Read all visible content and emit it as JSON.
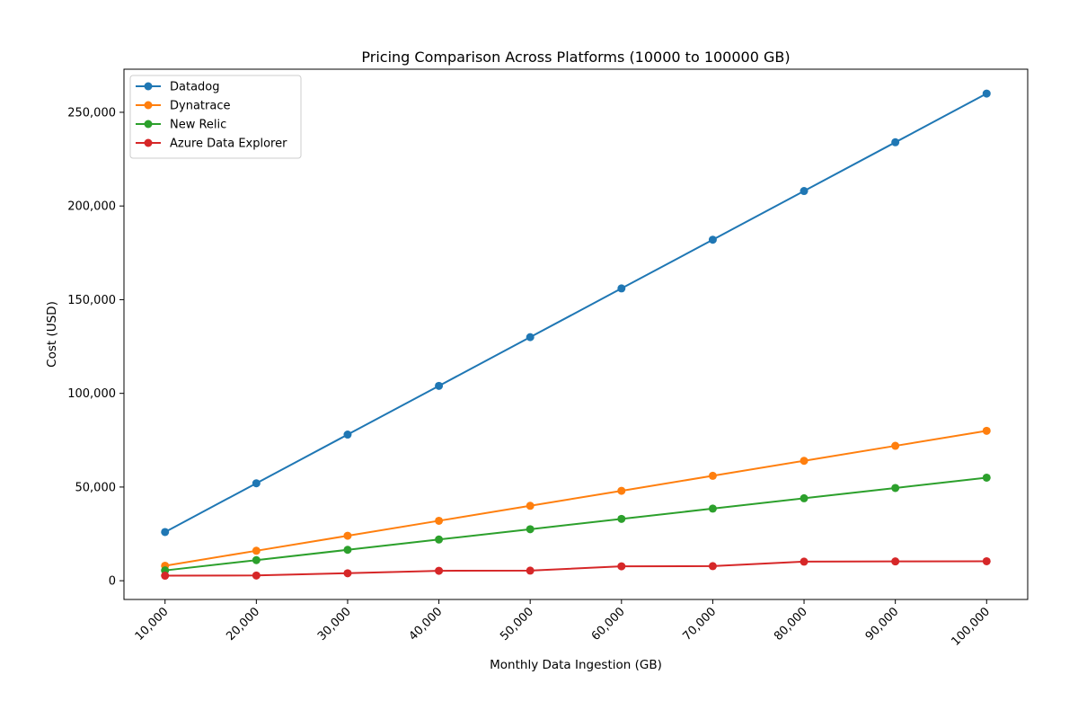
{
  "chart_data": {
    "type": "line",
    "title": "Pricing Comparison Across Platforms (10000 to 100000 GB)",
    "xlabel": "Monthly Data Ingestion (GB)",
    "ylabel": "Cost (USD)",
    "x": [
      10000,
      20000,
      30000,
      40000,
      50000,
      60000,
      70000,
      80000,
      90000,
      100000
    ],
    "x_tick_labels": [
      "10,000",
      "20,000",
      "30,000",
      "40,000",
      "50,000",
      "60,000",
      "70,000",
      "80,000",
      "90,000",
      "100,000"
    ],
    "y_ticks": [
      0,
      50000,
      100000,
      150000,
      200000,
      250000
    ],
    "y_tick_labels": [
      "0",
      "50,000",
      "100,000",
      "150,000",
      "200,000",
      "250,000"
    ],
    "xlim": [
      5500,
      104500
    ],
    "ylim": [
      -10000,
      273000
    ],
    "grid": false,
    "legend_position": "upper-left",
    "series": [
      {
        "name": "Datadog",
        "color": "#1f77b4",
        "values": [
          26000,
          52000,
          78000,
          104000,
          130000,
          156000,
          182000,
          208000,
          234000,
          260000
        ]
      },
      {
        "name": "Dynatrace",
        "color": "#ff7f0e",
        "values": [
          8000,
          16000,
          24000,
          32000,
          40000,
          48000,
          56000,
          64000,
          72000,
          80000
        ]
      },
      {
        "name": "New Relic",
        "color": "#2ca02c",
        "values": [
          5500,
          11000,
          16500,
          22000,
          27500,
          33000,
          38500,
          44000,
          49500,
          55000
        ]
      },
      {
        "name": "Azure Data Explorer",
        "color": "#d62728",
        "values": [
          2700,
          2800,
          4000,
          5300,
          5400,
          7700,
          7800,
          10200,
          10300,
          10400
        ]
      }
    ]
  }
}
